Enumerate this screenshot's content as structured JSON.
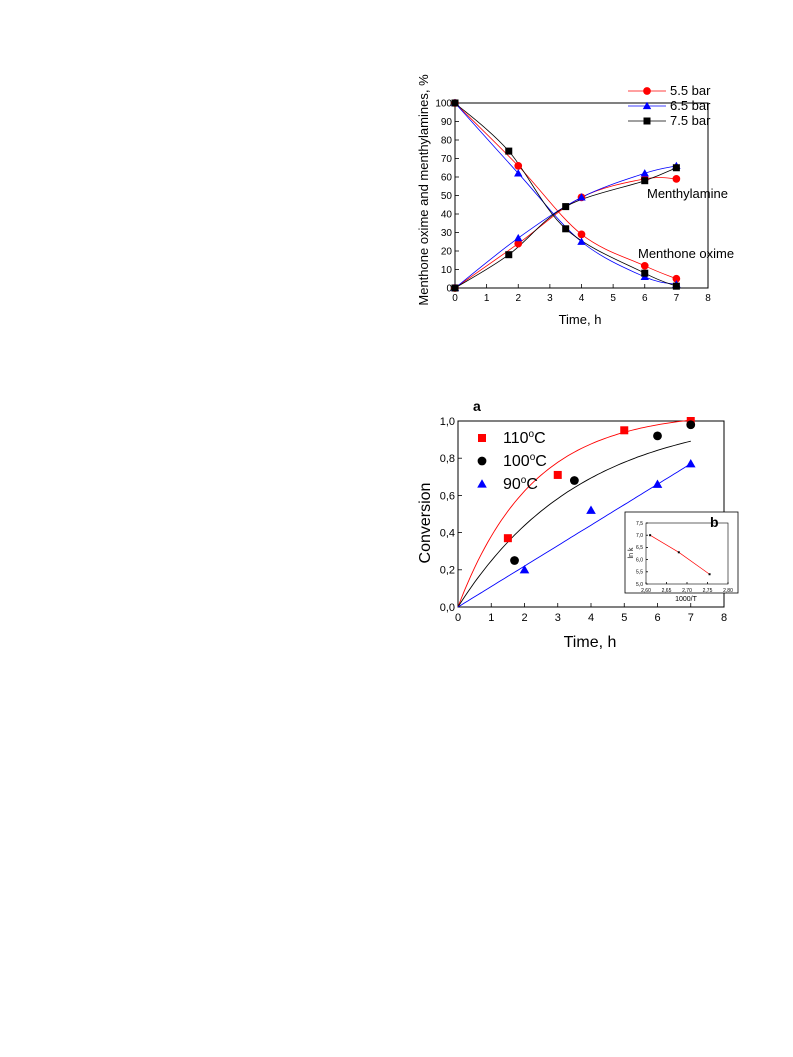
{
  "chart_data": [
    {
      "type": "line",
      "xlabel": "Time, h",
      "ylabel": "Menthone oxime and menthylamines, %",
      "xlim": [
        0,
        8
      ],
      "ylim": [
        0,
        100
      ],
      "xticks": [
        "0",
        "1",
        "2",
        "3",
        "4",
        "5",
        "6",
        "7",
        "8"
      ],
      "yticks": [
        "0",
        "10",
        "20",
        "30",
        "40",
        "50",
        "60",
        "70",
        "80",
        "90",
        "100"
      ],
      "legend_position": "top-right",
      "annotations": [
        "Menthylamine",
        "Menthone oxime"
      ],
      "series": [
        {
          "name": "5.5 bar",
          "marker": "circle",
          "color": "#ff0000",
          "oxime": {
            "x": [
              0,
              2,
              4,
              6,
              7
            ],
            "y": [
              100,
              66,
              29,
              12,
              5
            ]
          },
          "amine": {
            "x": [
              0,
              2,
              4,
              6,
              7
            ],
            "y": [
              0,
              24,
              49,
              59,
              59
            ]
          }
        },
        {
          "name": "6.5 bar",
          "marker": "triangle",
          "color": "#0000ff",
          "oxime": {
            "x": [
              0,
              2,
              4,
              6,
              7
            ],
            "y": [
              100,
              62,
              25,
              6,
              2
            ]
          },
          "amine": {
            "x": [
              0,
              2,
              4,
              6,
              7
            ],
            "y": [
              0,
              27,
              49,
              62,
              66
            ]
          }
        },
        {
          "name": "7.5 bar",
          "marker": "square",
          "color": "#000000",
          "oxime": {
            "x": [
              0,
              1.7,
              3.5,
              6,
              7
            ],
            "y": [
              100,
              74,
              32,
              8,
              1
            ]
          },
          "amine": {
            "x": [
              0,
              1.7,
              3.5,
              6,
              7
            ],
            "y": [
              0,
              18,
              44,
              58,
              65
            ]
          }
        }
      ]
    },
    {
      "type": "scatter",
      "panel_label": "a",
      "xlabel": "Time, h",
      "ylabel": "Conversion",
      "xlim": [
        0,
        8
      ],
      "ylim": [
        0,
        1.0
      ],
      "xticks": [
        "0",
        "1",
        "2",
        "3",
        "4",
        "5",
        "6",
        "7",
        "8"
      ],
      "yticks": [
        "0,0",
        "0,2",
        "0,4",
        "0,6",
        "0,8",
        "1,0"
      ],
      "legend_position": "top-left",
      "series": [
        {
          "name": "110",
          "marker": "square",
          "color": "#ff0000",
          "x": [
            0,
            1.5,
            3,
            5,
            7
          ],
          "y": [
            0,
            0.37,
            0.71,
            0.95,
            1.0
          ],
          "k": 0.45
        },
        {
          "name": "100",
          "marker": "circle",
          "color": "#000000",
          "x": [
            0,
            1.7,
            3.5,
            6,
            7
          ],
          "y": [
            0,
            0.25,
            0.68,
            0.92,
            0.98
          ],
          "k": 0.27
        },
        {
          "name": "90",
          "marker": "triangle",
          "color": "#0000ff",
          "x": [
            0,
            2,
            4,
            6,
            7
          ],
          "y": [
            0,
            0.2,
            0.52,
            0.66,
            0.77
          ],
          "k": 0.16
        }
      ],
      "legend_unit_sup": "o",
      "legend_unit": "C"
    },
    {
      "type": "line",
      "panel_label": "b",
      "xlabel": "1000/T",
      "ylabel": "ln k",
      "xlim": [
        2.6,
        2.8
      ],
      "ylim": [
        5.0,
        7.5
      ],
      "xticks": [
        "2,60",
        "2,65",
        "2,70",
        "2,75",
        "2,80"
      ],
      "yticks": [
        "5,0",
        "5,5",
        "6,0",
        "6,5",
        "7,0",
        "7,5"
      ],
      "x": [
        2.61,
        2.68,
        2.755
      ],
      "y": [
        7.0,
        6.3,
        5.4
      ],
      "color": "#ff0000"
    }
  ]
}
